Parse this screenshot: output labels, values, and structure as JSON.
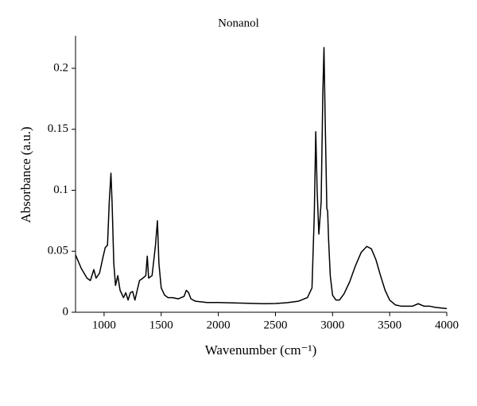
{
  "chart_data": {
    "type": "line",
    "title": "Nonanol",
    "xlabel": "Wavenumber (cm⁻¹)",
    "ylabel": "Absorbance (a.u.)",
    "xlim": [
      750,
      4000
    ],
    "xticks": [
      1000,
      1500,
      2000,
      2500,
      3000,
      3500,
      4000
    ],
    "ylim": [
      0,
      0.225
    ],
    "yticks": [
      0,
      0.05,
      0.1,
      0.15,
      0.2
    ],
    "series": [
      {
        "name": "Nonanol",
        "color": "#000000",
        "x": [
          750,
          800,
          850,
          880,
          910,
          930,
          960,
          990,
          1010,
          1030,
          1045,
          1060,
          1070,
          1085,
          1100,
          1120,
          1140,
          1170,
          1190,
          1210,
          1230,
          1250,
          1270,
          1290,
          1310,
          1340,
          1365,
          1378,
          1390,
          1420,
          1450,
          1467,
          1480,
          1500,
          1530,
          1560,
          1600,
          1650,
          1700,
          1720,
          1740,
          1760,
          1800,
          1900,
          2000,
          2200,
          2400,
          2500,
          2600,
          2700,
          2780,
          2820,
          2840,
          2853,
          2865,
          2880,
          2900,
          2915,
          2925,
          2935,
          2950,
          2957,
          2965,
          2980,
          3000,
          3030,
          3060,
          3100,
          3150,
          3200,
          3250,
          3300,
          3340,
          3380,
          3420,
          3460,
          3500,
          3550,
          3600,
          3700,
          3750,
          3800,
          3850,
          3900,
          4000
        ],
        "values": [
          0.047,
          0.036,
          0.028,
          0.026,
          0.035,
          0.028,
          0.032,
          0.045,
          0.053,
          0.055,
          0.09,
          0.114,
          0.09,
          0.04,
          0.022,
          0.03,
          0.018,
          0.012,
          0.016,
          0.01,
          0.016,
          0.017,
          0.01,
          0.018,
          0.026,
          0.028,
          0.03,
          0.046,
          0.028,
          0.03,
          0.055,
          0.075,
          0.04,
          0.02,
          0.014,
          0.012,
          0.012,
          0.011,
          0.013,
          0.018,
          0.016,
          0.011,
          0.009,
          0.008,
          0.008,
          0.0075,
          0.007,
          0.0072,
          0.0078,
          0.009,
          0.012,
          0.02,
          0.08,
          0.148,
          0.1,
          0.064,
          0.09,
          0.18,
          0.217,
          0.16,
          0.085,
          0.083,
          0.06,
          0.03,
          0.014,
          0.01,
          0.01,
          0.015,
          0.025,
          0.038,
          0.049,
          0.054,
          0.052,
          0.043,
          0.03,
          0.018,
          0.01,
          0.006,
          0.005,
          0.005,
          0.007,
          0.005,
          0.005,
          0.004,
          0.003
        ]
      }
    ]
  }
}
